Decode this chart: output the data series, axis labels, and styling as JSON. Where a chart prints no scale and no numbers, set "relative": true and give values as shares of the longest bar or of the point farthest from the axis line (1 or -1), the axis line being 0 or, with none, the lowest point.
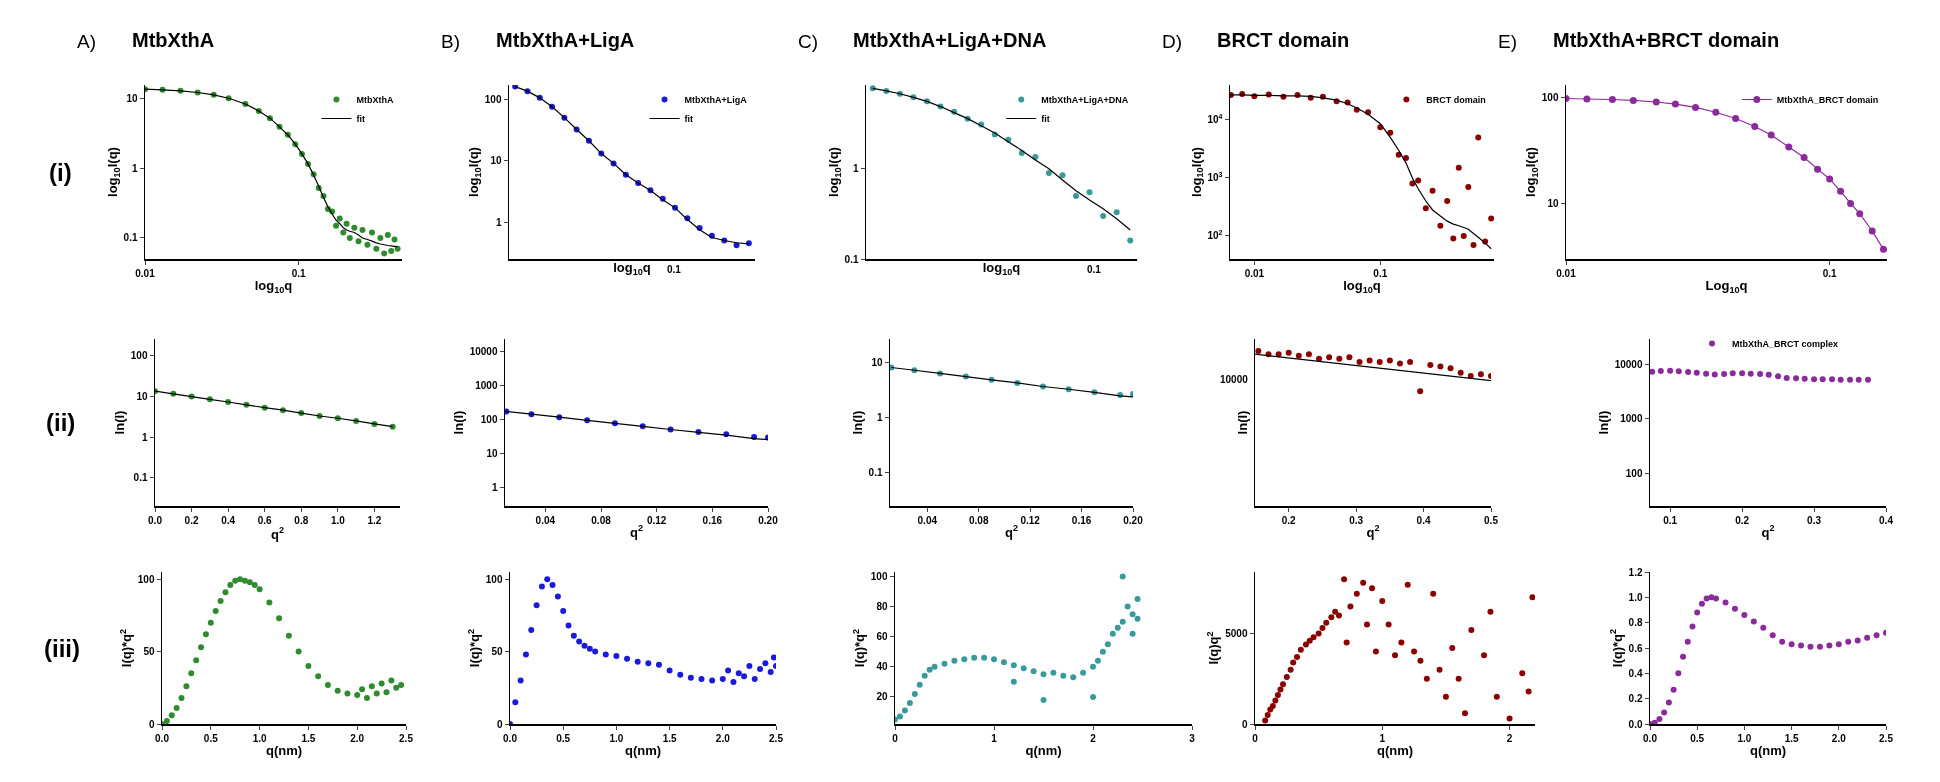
{
  "chart_data": [
    {
      "type": "scatter",
      "title": "MtbXthA",
      "annotations": [
        "A)",
        "(i)"
      ],
      "xlabel": "log$_{10}$q",
      "ylabel": "log$_{10}$I(q)",
      "log": "xy",
      "xlim": [
        0.01,
        0.47
      ],
      "ylim": [
        0.05,
        15.5
      ],
      "xticks": [
        0.01,
        0.1
      ],
      "yticks": [
        0.1,
        1,
        10
      ],
      "legend": "top right",
      "marker": "circle",
      "x": [
        0.01,
        0.013,
        0.017,
        0.022,
        0.028,
        0.035,
        0.045,
        0.055,
        0.065,
        0.075,
        0.085,
        0.095,
        0.105,
        0.115,
        0.125,
        0.135,
        0.145,
        0.155,
        0.165,
        0.175,
        0.185,
        0.195,
        0.205,
        0.215,
        0.23,
        0.245,
        0.26,
        0.28,
        0.3,
        0.32,
        0.34,
        0.36,
        0.38,
        0.4,
        0.42,
        0.44
      ],
      "series": [
        {
          "name": "MtbXthA",
          "color": "#2e8b2e",
          "values": [
            13.5,
            13.2,
            12.8,
            12.1,
            11.2,
            10.0,
            8.3,
            6.6,
            5.2,
            3.9,
            3.0,
            2.2,
            1.6,
            1.15,
            0.82,
            0.52,
            0.4,
            0.26,
            0.24,
            0.15,
            0.19,
            0.12,
            0.16,
            0.1,
            0.14,
            0.09,
            0.13,
            0.08,
            0.12,
            0.07,
            0.1,
            0.06,
            0.11,
            0.065,
            0.095,
            0.07
          ]
        },
        {
          "name": "fit",
          "type": "line",
          "marker": "none",
          "color": "#000000",
          "values": [
            13.5,
            13.2,
            12.8,
            12.1,
            11.2,
            10.0,
            8.3,
            6.6,
            5.2,
            3.9,
            3.0,
            2.2,
            1.6,
            1.15,
            0.8,
            0.55,
            0.38,
            0.28,
            0.22,
            0.18,
            0.16,
            0.14,
            0.13,
            0.125,
            0.12,
            0.11,
            0.1,
            0.095,
            0.09,
            0.085,
            0.082,
            0.08,
            0.078,
            0.077,
            0.076,
            0.075
          ]
        }
      ]
    },
    {
      "type": "scatter",
      "title": "MtbXthA+LigA",
      "annotations": [
        "B)",
        "0.1"
      ],
      "xlabel": "log$_{10}$q",
      "ylabel": "log$_{10}$I(q)",
      "log": "y",
      "ylim": [
        0.25,
        170
      ],
      "yticks": [
        1,
        10,
        100
      ],
      "legend": "top right",
      "marker": "circle",
      "categories": [
        null,
        null,
        null,
        null,
        null,
        null,
        null,
        null,
        null,
        null,
        null,
        null,
        null,
        null,
        null,
        null,
        null,
        null,
        null,
        null
      ],
      "series": [
        {
          "name": "MtbXthA+LigA",
          "color": "#1a1adb",
          "values": [
            160,
            135,
            105,
            75,
            50,
            32,
            21,
            13,
            9,
            5.9,
            4.3,
            3.3,
            2.4,
            1.7,
            1.15,
            0.8,
            0.6,
            0.5,
            0.42,
            0.45
          ]
        },
        {
          "name": "fit",
          "type": "line",
          "marker": "none",
          "color": "#000000",
          "values": [
            160,
            135,
            105,
            75,
            50,
            32,
            21,
            13,
            9,
            5.9,
            4.3,
            3.25,
            2.3,
            1.7,
            1.1,
            0.75,
            0.56,
            0.5,
            0.46,
            0.44
          ]
        }
      ]
    },
    {
      "type": "scatter",
      "title": "MtbXthA+LigA+DNA",
      "annotations": [
        "C)",
        "0.1"
      ],
      "xlabel": "log$_{10}$q",
      "ylabel": "log$_{10}$I(q)",
      "log": "y",
      "ylim": [
        0.1,
        8.5
      ],
      "yticks": [
        0.1,
        1
      ],
      "legend": "top right",
      "marker": "circle",
      "categories": [
        null,
        null,
        null,
        null,
        null,
        null,
        null,
        null,
        null,
        null,
        null,
        null,
        null,
        null,
        null,
        null,
        null,
        null,
        null,
        null
      ],
      "series": [
        {
          "name": "MtbXthA+LigA+DNA",
          "color": "#3a9a9a",
          "values": [
            7.8,
            7.3,
            6.8,
            6.2,
            5.6,
            4.9,
            4.3,
            3.6,
            3.1,
            2.4,
            2.1,
            1.5,
            1.35,
            0.9,
            0.85,
            0.5,
            0.55,
            0.3,
            0.33,
            0.16
          ]
        },
        {
          "name": "fit",
          "type": "line",
          "marker": "none",
          "color": "#000000",
          "values": [
            7.8,
            7.3,
            6.8,
            6.2,
            5.6,
            4.9,
            4.2,
            3.6,
            3.0,
            2.5,
            2.0,
            1.6,
            1.25,
            1.0,
            0.75,
            0.57,
            0.45,
            0.36,
            0.28,
            0.21
          ]
        }
      ]
    },
    {
      "type": "scatter",
      "title": "BRCT domain",
      "annotations": [
        "D)"
      ],
      "xlabel": "log$_{10}$q",
      "ylabel": "log$_{10}$I(q)",
      "log": "xy",
      "xlim": [
        0.0064,
        0.8
      ],
      "ylim": [
        40,
        40000
      ],
      "xticks": [
        0.01,
        0.1
      ],
      "yticks": [
        {
          "value": 100,
          "label": "10$^{2}$"
        },
        {
          "value": 1000,
          "label": "10$^{3}$"
        },
        {
          "value": 10000,
          "label": "10$^{4}$"
        }
      ],
      "legend": "top right",
      "marker": "circle",
      "x": [
        0.0065,
        0.008,
        0.01,
        0.013,
        0.017,
        0.022,
        0.028,
        0.035,
        0.045,
        0.055,
        0.065,
        0.08,
        0.1,
        0.12,
        0.14,
        0.16,
        0.18,
        0.2,
        0.23,
        0.26,
        0.3,
        0.34,
        0.38,
        0.42,
        0.46,
        0.5,
        0.55,
        0.6,
        0.68,
        0.76
      ],
      "series": [
        {
          "name": "BRCT domain",
          "color": "#8b0000",
          "values": [
            27000,
            28000,
            25500,
            27500,
            25000,
            27000,
            24000,
            25000,
            21000,
            20000,
            15000,
            13500,
            7500,
            6000,
            2500,
            2200,
            800,
            900,
            300,
            600,
            150,
            400,
            90,
            1500,
            100,
            700,
            70,
            5000,
            80,
            200
          ]
        },
        {
          "type": "line",
          "marker": "none",
          "color": "#000000",
          "values": [
            27000,
            27000,
            26500,
            26500,
            26000,
            26000,
            25500,
            24000,
            22000,
            19000,
            16000,
            12500,
            8600,
            5000,
            3000,
            1800,
            1000,
            650,
            400,
            280,
            220,
            180,
            160,
            150,
            140,
            130,
            110,
            95,
            75,
            60
          ]
        }
      ]
    },
    {
      "type": "scatter",
      "title": "MtbXthA+BRCT domain",
      "annotations": [
        "E)"
      ],
      "xlabel": "Log$_{10}$q",
      "ylabel": "log$_{10}$I(q)",
      "log": "xy",
      "xlim": [
        0.01,
        0.165
      ],
      "ylim": [
        3,
        130
      ],
      "xticks": [
        0.01,
        0.1
      ],
      "yticks": [
        10,
        100
      ],
      "legend": "top right",
      "marker": "circle",
      "x": [
        0.01,
        0.012,
        0.015,
        0.018,
        0.022,
        0.026,
        0.031,
        0.037,
        0.044,
        0.052,
        0.06,
        0.07,
        0.08,
        0.09,
        0.1,
        0.11,
        0.12,
        0.13,
        0.145,
        0.16
      ],
      "series": [
        {
          "name": "MtbXthA_BRCT domain",
          "type": "line",
          "color": "#8b2a9b",
          "values": [
            97,
            96,
            95,
            93,
            90,
            86,
            80,
            72,
            63,
            53,
            44,
            34,
            27,
            21,
            17,
            13,
            10,
            8,
            5.5,
            3.7
          ]
        }
      ]
    },
    {
      "type": "scatter",
      "annotations": [
        "(ii)"
      ],
      "xlabel": "q$^{2}$",
      "ylabel": "ln(I)",
      "log": "y",
      "xlim": [
        0,
        1.34
      ],
      "ylim": [
        0.02,
        260
      ],
      "xticks": [
        {
          "value": 0,
          "label": "0.0"
        },
        0.2,
        0.4,
        0.6,
        0.8,
        {
          "value": 1,
          "label": "1.0"
        },
        1.2
      ],
      "yticks": [
        0.1,
        1,
        10,
        100
      ],
      "marker": "circle",
      "x": [
        0,
        0.1,
        0.2,
        0.3,
        0.4,
        0.5,
        0.6,
        0.7,
        0.8,
        0.9,
        1.0,
        1.1,
        1.2,
        1.3
      ],
      "series": [
        {
          "color": "#2e8b2e",
          "values": [
            13.5,
            11.6,
            9.9,
            8.5,
            7.3,
            6.2,
            5.3,
            4.6,
            3.9,
            3.3,
            2.9,
            2.5,
            2.1,
            1.8
          ]
        },
        {
          "type": "line",
          "marker": "none",
          "color": "#000000",
          "values": [
            13.5,
            11.6,
            9.9,
            8.5,
            7.3,
            6.2,
            5.3,
            4.6,
            3.9,
            3.3,
            2.9,
            2.5,
            2.1,
            1.8
          ]
        }
      ]
    },
    {
      "type": "scatter",
      "xlabel": "q$^{2}$",
      "ylabel": "ln(I)",
      "log": "y",
      "xlim": [
        0.011,
        0.2
      ],
      "ylim": [
        0.28,
        23000
      ],
      "xticks": [
        0.04,
        0.08,
        0.12,
        0.16,
        {
          "value": 0.2,
          "label": "0.20"
        }
      ],
      "yticks": [
        1,
        10,
        100,
        1000,
        10000
      ],
      "marker": "circle",
      "x": [
        0.012,
        0.03,
        0.05,
        0.07,
        0.09,
        0.11,
        0.13,
        0.15,
        0.17,
        0.19,
        0.2
      ],
      "series": [
        {
          "color": "#1a1adb",
          "values": [
            170,
            141,
            115,
            93,
            76,
            62,
            50,
            42,
            36,
            30,
            29
          ]
        },
        {
          "type": "line",
          "marker": "none",
          "color": "#000000",
          "values": [
            170,
            141,
            115,
            93,
            76,
            62,
            50,
            41,
            34,
            27,
            25
          ]
        }
      ]
    },
    {
      "type": "scatter",
      "xlabel": "q$^{2}$",
      "ylabel": "ln(I)",
      "log": "y",
      "xlim": [
        0.011,
        0.2
      ],
      "ylim": [
        0.025,
        27
      ],
      "xticks": [
        0.04,
        0.08,
        0.12,
        0.16,
        {
          "value": 0.2,
          "label": "0.20"
        }
      ],
      "yticks": [
        0.1,
        1,
        10
      ],
      "marker": "circle",
      "x": [
        0.012,
        0.03,
        0.05,
        0.07,
        0.09,
        0.11,
        0.13,
        0.15,
        0.17,
        0.19,
        0.2
      ],
      "series": [
        {
          "color": "#3a9a9a",
          "values": [
            8.2,
            7.3,
            6.4,
            5.6,
            4.9,
            4.3,
            3.7,
            3.3,
            2.9,
            2.6,
            2.7
          ]
        },
        {
          "type": "line",
          "marker": "none",
          "color": "#000000",
          "values": [
            8.2,
            7.3,
            6.4,
            5.6,
            4.9,
            4.3,
            3.7,
            3.3,
            2.9,
            2.5,
            2.4
          ]
        }
      ]
    },
    {
      "type": "scatter",
      "xlabel": "q$^{2}$",
      "ylabel": "ln(I)",
      "relative": true,
      "xlim": [
        0.15,
        0.5
      ],
      "xticks": [
        0.2,
        0.3,
        0.4,
        0.5
      ],
      "marker": "circle",
      "annotations": [
        "10000"
      ],
      "series": [
        {
          "color": "#8b0000",
          "x": [
            0.155,
            0.17,
            0.185,
            0.2,
            0.215,
            0.23,
            0.245,
            0.26,
            0.275,
            0.29,
            0.305,
            0.32,
            0.335,
            0.35,
            0.365,
            0.38,
            0.395,
            0.41,
            0.425,
            0.44,
            0.455,
            0.47,
            0.485,
            0.5
          ],
          "values": [
            1.0,
            0.98,
            0.98,
            0.99,
            0.97,
            0.98,
            0.95,
            0.96,
            0.95,
            0.96,
            0.93,
            0.94,
            0.93,
            0.94,
            0.92,
            0.93,
            0.74,
            0.91,
            0.9,
            0.89,
            0.86,
            0.84,
            0.85,
            0.84
          ]
        },
        {
          "type": "line",
          "marker": "none",
          "color": "#000000",
          "x": [
            0.15,
            0.5
          ],
          "values": [
            0.98,
            0.81
          ]
        }
      ]
    },
    {
      "type": "scatter",
      "xlabel": "q$^{2}$",
      "ylabel": "ln(I)",
      "log": "y",
      "xlim": [
        0.072,
        0.4
      ],
      "ylim": [
        25,
        29000
      ],
      "xticks": [
        0.1,
        0.2,
        0.3,
        0.4
      ],
      "yticks": [
        100,
        1000,
        10000
      ],
      "legend": "top",
      "marker": "circle",
      "x": [
        0.075,
        0.087,
        0.1,
        0.112,
        0.125,
        0.137,
        0.15,
        0.162,
        0.175,
        0.187,
        0.2,
        0.212,
        0.225,
        0.237,
        0.25,
        0.262,
        0.275,
        0.287,
        0.3,
        0.312,
        0.325,
        0.337,
        0.35,
        0.362,
        0.375
      ],
      "series": [
        {
          "name": "MtbXthA_BRCT complex",
          "color": "#8b2a9b",
          "values": [
            7300,
            7500,
            7600,
            7400,
            7200,
            7000,
            6700,
            6500,
            6600,
            6800,
            6800,
            6700,
            6600,
            6400,
            6000,
            5600,
            5500,
            5400,
            5300,
            5300,
            5300,
            5200,
            5200,
            5200,
            5200
          ]
        }
      ]
    },
    {
      "type": "scatter",
      "annotations": [
        "(iii)"
      ],
      "xlabel": "q(nm)",
      "ylabel": "I(q)*q$^{2}$",
      "xlim": [
        0,
        2.5
      ],
      "ylim": [
        0,
        105
      ],
      "xticks": [
        {
          "value": 0,
          "label": "0.0"
        },
        0.5,
        {
          "value": 1,
          "label": "1.0"
        },
        1.5,
        {
          "value": 2,
          "label": "2.0"
        },
        2.5
      ],
      "yticks": [
        0,
        50,
        100
      ],
      "marker": "circle",
      "x": [
        0,
        0.05,
        0.1,
        0.15,
        0.2,
        0.25,
        0.3,
        0.35,
        0.4,
        0.45,
        0.5,
        0.55,
        0.6,
        0.65,
        0.7,
        0.75,
        0.8,
        0.85,
        0.9,
        0.95,
        1.0,
        1.1,
        1.2,
        1.3,
        1.4,
        1.5,
        1.6,
        1.7,
        1.8,
        1.9,
        2.0,
        2.05,
        2.1,
        2.15,
        2.2,
        2.25,
        2.3,
        2.35,
        2.4,
        2.45
      ],
      "series": [
        {
          "color": "#2e8b2e",
          "values": [
            0,
            2,
            6,
            11,
            18,
            26,
            35,
            44,
            53,
            62,
            70,
            78,
            85,
            91,
            96,
            99,
            100,
            99,
            98,
            96,
            93,
            84,
            73,
            61,
            50,
            40,
            33,
            27,
            23,
            21,
            20,
            24,
            18,
            26,
            21,
            28,
            22,
            30,
            25,
            27
          ]
        }
      ]
    },
    {
      "type": "scatter",
      "xlabel": "q(nm)",
      "ylabel": "I(q)*q$^{2}$",
      "xlim": [
        0,
        2.5
      ],
      "ylim": [
        0,
        105
      ],
      "xticks": [
        {
          "value": 0,
          "label": "0.0"
        },
        0.5,
        {
          "value": 1,
          "label": "1.0"
        },
        1.5,
        {
          "value": 2,
          "label": "2.0"
        },
        2.5
      ],
      "yticks": [
        0,
        50,
        100
      ],
      "marker": "circle",
      "x": [
        0,
        0.05,
        0.1,
        0.15,
        0.2,
        0.25,
        0.3,
        0.35,
        0.4,
        0.45,
        0.5,
        0.55,
        0.6,
        0.65,
        0.7,
        0.75,
        0.8,
        0.9,
        1.0,
        1.1,
        1.2,
        1.3,
        1.4,
        1.5,
        1.6,
        1.7,
        1.8,
        1.9,
        2.0,
        2.05,
        2.1,
        2.15,
        2.2,
        2.25,
        2.3,
        2.35,
        2.4,
        2.45,
        2.48,
        2.5
      ],
      "series": [
        {
          "color": "#1a1adb",
          "values": [
            0,
            15,
            30,
            48,
            65,
            82,
            95,
            100,
            96,
            88,
            78,
            68,
            61,
            57,
            54,
            52,
            50,
            48,
            47,
            45,
            43,
            42,
            41,
            37,
            34,
            32,
            31,
            30,
            31,
            37,
            29,
            35,
            33,
            40,
            31,
            38,
            42,
            36,
            46,
            40
          ]
        }
      ]
    },
    {
      "type": "scatter",
      "xlabel": "q(nm)",
      "ylabel": "I(q)*q$^{2}$",
      "xlim": [
        0,
        3
      ],
      "ylim": [
        2,
        103
      ],
      "xticks": [
        0,
        1,
        2,
        3
      ],
      "yticks": [
        20,
        40,
        60,
        80,
        100
      ],
      "marker": "circle",
      "x": [
        0,
        0.05,
        0.1,
        0.15,
        0.2,
        0.25,
        0.3,
        0.35,
        0.4,
        0.5,
        0.6,
        0.7,
        0.8,
        0.9,
        1.0,
        1.1,
        1.2,
        1.3,
        1.4,
        1.5,
        1.6,
        1.7,
        1.8,
        1.9,
        2.0,
        2.05,
        2.1,
        2.15,
        2.2,
        2.25,
        2.3,
        2.35,
        2.4,
        2.45,
        2.0,
        1.5,
        1.2,
        2.3,
        2.4,
        2.45
      ],
      "series": [
        {
          "color": "#3a9a9a",
          "values": [
            5,
            7,
            11,
            16,
            22,
            28,
            34,
            38,
            40,
            42,
            44,
            45,
            46,
            46,
            45,
            43,
            41,
            39,
            37,
            35,
            36,
            34,
            33,
            36,
            40,
            44,
            50,
            55,
            62,
            66,
            70,
            80,
            75,
            85,
            20,
            18,
            30,
            100,
            62,
            72
          ]
        }
      ]
    },
    {
      "type": "scatter",
      "xlabel": "q(nm)",
      "ylabel": "I(q)q$^{2}$",
      "xlim": [
        0,
        2.2
      ],
      "ylim": [
        0,
        8400
      ],
      "xticks": [
        0,
        1,
        2
      ],
      "yticks": [
        0,
        5000
      ],
      "marker": "circle",
      "x": [
        0.08,
        0.1,
        0.12,
        0.14,
        0.16,
        0.18,
        0.2,
        0.22,
        0.25,
        0.28,
        0.3,
        0.33,
        0.36,
        0.4,
        0.43,
        0.46,
        0.5,
        0.53,
        0.56,
        0.6,
        0.63,
        0.66,
        0.7,
        0.72,
        0.75,
        0.8,
        0.85,
        0.88,
        0.92,
        0.95,
        1.0,
        1.05,
        1.1,
        1.15,
        1.2,
        1.25,
        1.3,
        1.35,
        1.4,
        1.45,
        1.5,
        1.55,
        1.6,
        1.65,
        1.7,
        1.8,
        1.85,
        1.9,
        2.0,
        2.1,
        2.15,
        2.18
      ],
      "series": [
        {
          "color": "#8b0000",
          "values": [
            200,
            500,
            800,
            1000,
            1300,
            1600,
            1900,
            2200,
            2600,
            3000,
            3400,
            3700,
            4100,
            4400,
            4600,
            4800,
            5000,
            5300,
            5600,
            5900,
            6200,
            6000,
            8000,
            4500,
            6500,
            7200,
            7800,
            5500,
            7500,
            4000,
            6800,
            5500,
            3800,
            4500,
            7700,
            4000,
            3500,
            2500,
            7200,
            3000,
            1500,
            4200,
            2500,
            600,
            5200,
            3800,
            6200,
            1500,
            300,
            2800,
            1800,
            7000
          ]
        }
      ]
    },
    {
      "type": "scatter",
      "xlabel": "q(nm)",
      "ylabel": "I(q)*q$^{2}$",
      "xlim": [
        0,
        2.5
      ],
      "ylim": [
        0,
        1.2
      ],
      "xticks": [
        {
          "value": 0,
          "label": "0.0"
        },
        0.5,
        {
          "value": 1,
          "label": "1.0"
        },
        1.5,
        {
          "value": 2,
          "label": "2.0"
        },
        2.5
      ],
      "yticks": [
        {
          "value": 0,
          "label": "0.0"
        },
        0.2,
        0.4,
        0.6,
        0.8,
        {
          "value": 1,
          "label": "1.0"
        },
        1.2
      ],
      "marker": "circle",
      "x": [
        0,
        0.05,
        0.1,
        0.15,
        0.2,
        0.25,
        0.3,
        0.35,
        0.4,
        0.45,
        0.5,
        0.55,
        0.6,
        0.65,
        0.7,
        0.8,
        0.9,
        1.0,
        1.1,
        1.2,
        1.3,
        1.4,
        1.5,
        1.6,
        1.7,
        1.8,
        1.9,
        2.0,
        2.1,
        2.2,
        2.3,
        2.4,
        2.5
      ],
      "series": [
        {
          "color": "#8b2a9b",
          "values": [
            0,
            0.01,
            0.04,
            0.09,
            0.17,
            0.27,
            0.4,
            0.53,
            0.65,
            0.77,
            0.88,
            0.95,
            0.99,
            1.0,
            0.99,
            0.96,
            0.91,
            0.86,
            0.81,
            0.76,
            0.7,
            0.65,
            0.63,
            0.62,
            0.61,
            0.61,
            0.62,
            0.63,
            0.65,
            0.66,
            0.68,
            0.7,
            0.72
          ]
        }
      ]
    }
  ]
}
